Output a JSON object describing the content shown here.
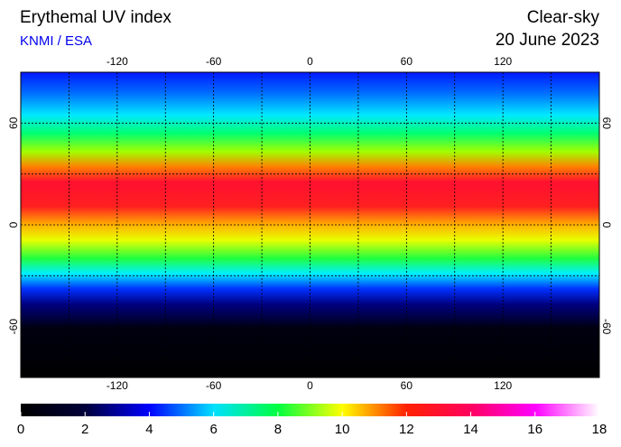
{
  "header": {
    "title": "Erythemal UV index",
    "source": "KNMI / ESA",
    "condition": "Clear-sky",
    "date": "20 June 2023"
  },
  "map": {
    "lon_range": [
      -180,
      180
    ],
    "lat_range": [
      -90,
      90
    ],
    "lon_ticks": [
      -120,
      -60,
      0,
      60,
      120
    ],
    "lat_ticks": [
      60,
      0,
      -60
    ]
  },
  "colorbar": {
    "range": [
      0,
      18
    ],
    "ticks": [
      0,
      2,
      4,
      6,
      8,
      10,
      12,
      14,
      16,
      18
    ],
    "colors": [
      "#000000",
      "#00003a",
      "#0000ff",
      "#00e0ff",
      "#00ff40",
      "#ffff00",
      "#ff2000",
      "#ff0060",
      "#ff00ff",
      "#ffffff"
    ]
  }
}
